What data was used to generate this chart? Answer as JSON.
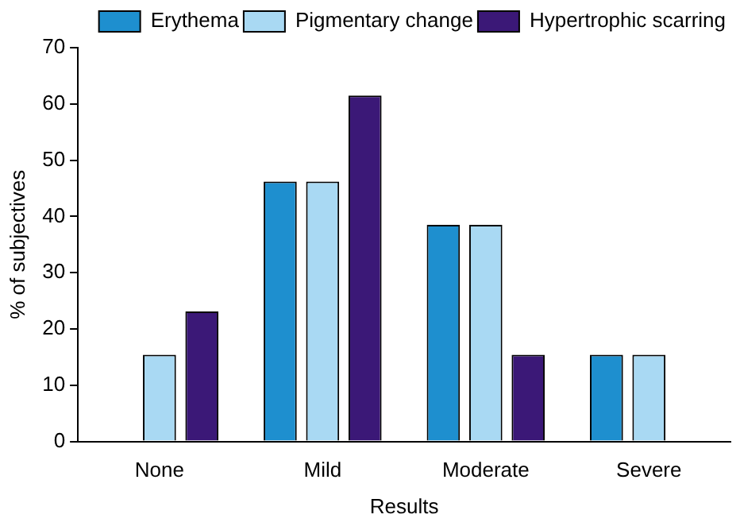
{
  "chart_data": {
    "type": "bar",
    "xlabel": "Results",
    "ylabel": "% of subjectives",
    "categories": [
      "None",
      "Mild",
      "Moderate",
      "Severe"
    ],
    "series": [
      {
        "name": "Erythema",
        "color": "#1e8fcf",
        "values": [
          0,
          46.2,
          38.5,
          15.4
        ]
      },
      {
        "name": "Pigmentary change",
        "color": "#a9d9f3",
        "values": [
          15.4,
          46.2,
          38.5,
          15.4
        ]
      },
      {
        "name": "Hypertrophic scarring",
        "color": "#3b1877",
        "values": [
          23.1,
          61.5,
          15.4,
          0
        ]
      }
    ],
    "ylim": [
      0,
      70
    ],
    "yticks": [
      0,
      10,
      20,
      30,
      40,
      50,
      60,
      70
    ],
    "grid": false,
    "legend": "top right"
  }
}
